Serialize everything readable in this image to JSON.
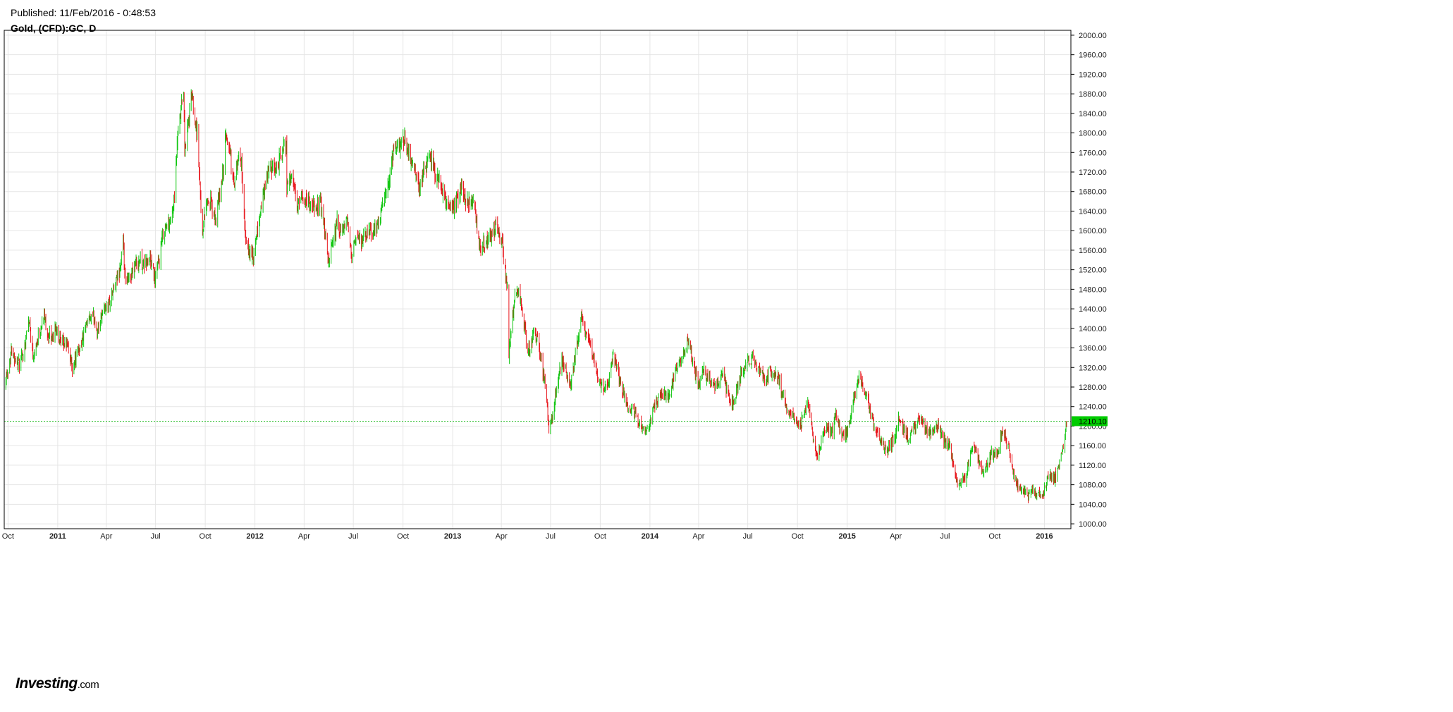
{
  "header": {
    "published": "Published: 11/Feb/2016 - 0:48:53",
    "instrument": "Gold, (CFD):GC, D"
  },
  "logo": {
    "brand": "Investing",
    "suffix": ".com"
  },
  "colors": {
    "up": "#11c611",
    "down": "#e8151b",
    "grid": "#e5e5e5",
    "frame": "#000000",
    "current_price_bg": "#00cc00",
    "current_price_line": "#22bb22"
  },
  "chart_data": {
    "type": "candlestick",
    "title": "Gold, (CFD):GC, D",
    "interval": "daily",
    "grid": true,
    "ylim": [
      990,
      2010
    ],
    "yticks": [
      "1000.00",
      "1040.00",
      "1080.00",
      "1120.00",
      "1160.00",
      "1200.00",
      "1240.00",
      "1280.00",
      "1320.00",
      "1360.00",
      "1400.00",
      "1440.00",
      "1480.00",
      "1520.00",
      "1560.00",
      "1600.00",
      "1640.00",
      "1680.00",
      "1720.00",
      "1760.00",
      "1800.00",
      "1840.00",
      "1880.00",
      "1920.00",
      "1960.00",
      "2000.00"
    ],
    "xlim": [
      "2010-09-24",
      "2016-02-19"
    ],
    "xticks": [
      {
        "date": "2010-10-01",
        "label": "Oct",
        "bold": false
      },
      {
        "date": "2011-01-01",
        "label": "2011",
        "bold": true
      },
      {
        "date": "2011-04-01",
        "label": "Apr",
        "bold": false
      },
      {
        "date": "2011-07-01",
        "label": "Jul",
        "bold": false
      },
      {
        "date": "2011-10-01",
        "label": "Oct",
        "bold": false
      },
      {
        "date": "2012-01-01",
        "label": "2012",
        "bold": true
      },
      {
        "date": "2012-04-01",
        "label": "Apr",
        "bold": false
      },
      {
        "date": "2012-07-01",
        "label": "Jul",
        "bold": false
      },
      {
        "date": "2012-10-01",
        "label": "Oct",
        "bold": false
      },
      {
        "date": "2013-01-01",
        "label": "2013",
        "bold": true
      },
      {
        "date": "2013-04-01",
        "label": "Apr",
        "bold": false
      },
      {
        "date": "2013-07-01",
        "label": "Jul",
        "bold": false
      },
      {
        "date": "2013-10-01",
        "label": "Oct",
        "bold": false
      },
      {
        "date": "2014-01-01",
        "label": "2014",
        "bold": true
      },
      {
        "date": "2014-04-01",
        "label": "Apr",
        "bold": false
      },
      {
        "date": "2014-07-01",
        "label": "Jul",
        "bold": false
      },
      {
        "date": "2014-10-01",
        "label": "Oct",
        "bold": false
      },
      {
        "date": "2015-01-01",
        "label": "2015",
        "bold": true
      },
      {
        "date": "2015-04-01",
        "label": "Apr",
        "bold": false
      },
      {
        "date": "2015-07-01",
        "label": "Jul",
        "bold": false
      },
      {
        "date": "2015-10-01",
        "label": "Oct",
        "bold": false
      },
      {
        "date": "2016-01-01",
        "label": "2016",
        "bold": true
      }
    ],
    "current_price": 1210.1,
    "current_price_label": "1210.10",
    "close_path": [
      [
        "2010-09-24",
        1290
      ],
      [
        "2010-10-01",
        1315
      ],
      [
        "2010-10-08",
        1360
      ],
      [
        "2010-10-15",
        1335
      ],
      [
        "2010-10-22",
        1325
      ],
      [
        "2010-10-29",
        1345
      ],
      [
        "2010-11-05",
        1395
      ],
      [
        "2010-11-09",
        1420
      ],
      [
        "2010-11-16",
        1345
      ],
      [
        "2010-11-24",
        1375
      ],
      [
        "2010-12-03",
        1410
      ],
      [
        "2010-12-07",
        1425
      ],
      [
        "2010-12-14",
        1385
      ],
      [
        "2010-12-21",
        1380
      ],
      [
        "2010-12-31",
        1405
      ],
      [
        "2011-01-07",
        1365
      ],
      [
        "2011-01-18",
        1370
      ],
      [
        "2011-01-28",
        1320
      ],
      [
        "2011-02-07",
        1350
      ],
      [
        "2011-02-18",
        1385
      ],
      [
        "2011-03-01",
        1420
      ],
      [
        "2011-03-10",
        1420
      ],
      [
        "2011-03-16",
        1390
      ],
      [
        "2011-03-24",
        1435
      ],
      [
        "2011-04-05",
        1450
      ],
      [
        "2011-04-15",
        1480
      ],
      [
        "2011-04-25",
        1515
      ],
      [
        "2011-05-02",
        1570
      ],
      [
        "2011-05-06",
        1490
      ],
      [
        "2011-05-13",
        1500
      ],
      [
        "2011-05-24",
        1530
      ],
      [
        "2011-06-01",
        1540
      ],
      [
        "2011-06-10",
        1530
      ],
      [
        "2011-06-20",
        1545
      ],
      [
        "2011-06-30",
        1500
      ],
      [
        "2011-07-08",
        1540
      ],
      [
        "2011-07-15",
        1595
      ],
      [
        "2011-07-29",
        1625
      ],
      [
        "2011-08-05",
        1660
      ],
      [
        "2011-08-10",
        1780
      ],
      [
        "2011-08-22",
        1890
      ],
      [
        "2011-08-24",
        1760
      ],
      [
        "2011-09-06",
        1880
      ],
      [
        "2011-09-16",
        1800
      ],
      [
        "2011-09-23",
        1650
      ],
      [
        "2011-09-26",
        1600
      ],
      [
        "2011-10-03",
        1660
      ],
      [
        "2011-10-10",
        1660
      ],
      [
        "2011-10-20",
        1620
      ],
      [
        "2011-11-01",
        1700
      ],
      [
        "2011-11-08",
        1790
      ],
      [
        "2011-11-15",
        1770
      ],
      [
        "2011-11-23",
        1690
      ],
      [
        "2011-12-01",
        1745
      ],
      [
        "2011-12-07",
        1740
      ],
      [
        "2011-12-14",
        1580
      ],
      [
        "2011-12-29",
        1540
      ],
      [
        "2012-01-10",
        1630
      ],
      [
        "2012-01-25",
        1720
      ],
      [
        "2012-02-10",
        1730
      ],
      [
        "2012-02-28",
        1780
      ],
      [
        "2012-02-29",
        1695
      ],
      [
        "2012-03-09",
        1710
      ],
      [
        "2012-03-19",
        1650
      ],
      [
        "2012-03-30",
        1665
      ],
      [
        "2012-04-10",
        1660
      ],
      [
        "2012-04-24",
        1640
      ],
      [
        "2012-05-01",
        1665
      ],
      [
        "2012-05-10",
        1590
      ],
      [
        "2012-05-16",
        1535
      ],
      [
        "2012-05-25",
        1575
      ],
      [
        "2012-06-01",
        1620
      ],
      [
        "2012-06-08",
        1590
      ],
      [
        "2012-06-19",
        1620
      ],
      [
        "2012-06-28",
        1555
      ],
      [
        "2012-07-06",
        1580
      ],
      [
        "2012-07-19",
        1580
      ],
      [
        "2012-08-01",
        1600
      ],
      [
        "2012-08-15",
        1605
      ],
      [
        "2012-08-22",
        1640
      ],
      [
        "2012-09-06",
        1700
      ],
      [
        "2012-09-14",
        1770
      ],
      [
        "2012-09-21",
        1770
      ],
      [
        "2012-10-04",
        1790
      ],
      [
        "2012-10-12",
        1760
      ],
      [
        "2012-10-23",
        1720
      ],
      [
        "2012-11-02",
        1680
      ],
      [
        "2012-11-09",
        1730
      ],
      [
        "2012-11-23",
        1750
      ],
      [
        "2012-11-29",
        1715
      ],
      [
        "2012-12-07",
        1705
      ],
      [
        "2012-12-20",
        1655
      ],
      [
        "2013-01-04",
        1650
      ],
      [
        "2013-01-18",
        1690
      ],
      [
        "2013-01-25",
        1660
      ],
      [
        "2013-02-08",
        1665
      ],
      [
        "2013-02-15",
        1610
      ],
      [
        "2013-02-21",
        1570
      ],
      [
        "2013-03-08",
        1580
      ],
      [
        "2013-03-22",
        1610
      ],
      [
        "2013-04-02",
        1580
      ],
      [
        "2013-04-12",
        1480
      ],
      [
        "2013-04-15",
        1350
      ],
      [
        "2013-04-19",
        1400
      ],
      [
        "2013-04-26",
        1460
      ],
      [
        "2013-05-03",
        1470
      ],
      [
        "2013-05-10",
        1435
      ],
      [
        "2013-05-20",
        1350
      ],
      [
        "2013-05-31",
        1390
      ],
      [
        "2013-06-07",
        1380
      ],
      [
        "2013-06-20",
        1290
      ],
      [
        "2013-06-28",
        1200
      ],
      [
        "2013-07-05",
        1225
      ],
      [
        "2013-07-12",
        1280
      ],
      [
        "2013-07-22",
        1335
      ],
      [
        "2013-07-31",
        1310
      ],
      [
        "2013-08-08",
        1285
      ],
      [
        "2013-08-19",
        1370
      ],
      [
        "2013-08-27",
        1420
      ],
      [
        "2013-09-09",
        1380
      ],
      [
        "2013-09-20",
        1330
      ],
      [
        "2013-10-01",
        1285
      ],
      [
        "2013-10-14",
        1275
      ],
      [
        "2013-10-25",
        1350
      ],
      [
        "2013-11-01",
        1315
      ],
      [
        "2013-11-20",
        1245
      ],
      [
        "2013-12-05",
        1225
      ],
      [
        "2013-12-19",
        1195
      ],
      [
        "2013-12-31",
        1205
      ],
      [
        "2014-01-10",
        1245
      ],
      [
        "2014-01-24",
        1265
      ],
      [
        "2014-02-07",
        1260
      ],
      [
        "2014-02-18",
        1320
      ],
      [
        "2014-02-28",
        1330
      ],
      [
        "2014-03-14",
        1380
      ],
      [
        "2014-03-21",
        1330
      ],
      [
        "2014-04-01",
        1285
      ],
      [
        "2014-04-10",
        1320
      ],
      [
        "2014-04-18",
        1295
      ],
      [
        "2014-05-01",
        1285
      ],
      [
        "2014-05-15",
        1305
      ],
      [
        "2014-05-30",
        1250
      ],
      [
        "2014-06-05",
        1245
      ],
      [
        "2014-06-20",
        1315
      ],
      [
        "2014-07-10",
        1340
      ],
      [
        "2014-07-21",
        1315
      ],
      [
        "2014-08-01",
        1295
      ],
      [
        "2014-08-13",
        1315
      ],
      [
        "2014-08-29",
        1290
      ],
      [
        "2014-09-12",
        1230
      ],
      [
        "2014-09-26",
        1215
      ],
      [
        "2014-10-06",
        1200
      ],
      [
        "2014-10-20",
        1245
      ],
      [
        "2014-10-31",
        1170
      ],
      [
        "2014-11-07",
        1140
      ],
      [
        "2014-11-21",
        1195
      ],
      [
        "2014-12-05",
        1190
      ],
      [
        "2014-12-10",
        1230
      ],
      [
        "2014-12-22",
        1175
      ],
      [
        "2015-01-02",
        1190
      ],
      [
        "2015-01-14",
        1260
      ],
      [
        "2015-01-22",
        1300
      ],
      [
        "2015-02-05",
        1265
      ],
      [
        "2015-02-20",
        1205
      ],
      [
        "2015-03-06",
        1165
      ],
      [
        "2015-03-17",
        1150
      ],
      [
        "2015-03-31",
        1180
      ],
      [
        "2015-04-06",
        1215
      ],
      [
        "2015-04-24",
        1175
      ],
      [
        "2015-05-06",
        1195
      ],
      [
        "2015-05-15",
        1220
      ],
      [
        "2015-05-29",
        1190
      ],
      [
        "2015-06-10",
        1185
      ],
      [
        "2015-06-18",
        1200
      ],
      [
        "2015-06-30",
        1170
      ],
      [
        "2015-07-10",
        1160
      ],
      [
        "2015-07-20",
        1100
      ],
      [
        "2015-07-24",
        1085
      ],
      [
        "2015-08-06",
        1090
      ],
      [
        "2015-08-21",
        1160
      ],
      [
        "2015-09-04",
        1120
      ],
      [
        "2015-09-11",
        1105
      ],
      [
        "2015-09-25",
        1145
      ],
      [
        "2015-10-05",
        1140
      ],
      [
        "2015-10-14",
        1185
      ],
      [
        "2015-10-26",
        1165
      ],
      [
        "2015-11-06",
        1090
      ],
      [
        "2015-11-18",
        1070
      ],
      [
        "2015-11-25",
        1070
      ],
      [
        "2015-12-03",
        1055
      ],
      [
        "2015-12-10",
        1075
      ],
      [
        "2015-12-17",
        1060
      ],
      [
        "2015-12-31",
        1065
      ],
      [
        "2016-01-08",
        1100
      ],
      [
        "2016-01-19",
        1090
      ],
      [
        "2016-01-27",
        1115
      ],
      [
        "2016-02-05",
        1155
      ],
      [
        "2016-02-09",
        1190
      ],
      [
        "2016-02-11",
        1210
      ]
    ]
  }
}
